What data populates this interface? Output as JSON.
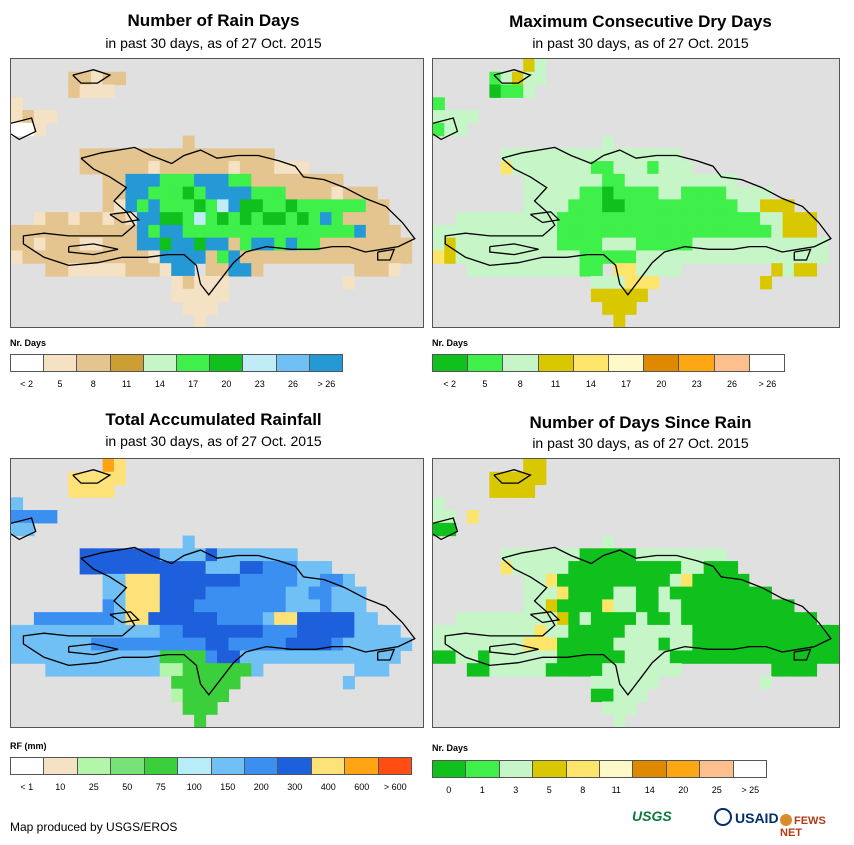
{
  "footer": "Map produced by USGS/EROS",
  "logos": [
    "USGS",
    "USAID",
    "FEWS NET"
  ],
  "colors": {
    "land_bg": "#e0e0e0",
    "coast": "#000000"
  },
  "panels": [
    {
      "title": "Number of Rain Days",
      "subtitle": "in past 30 days, as of 27 Oct. 2015",
      "legend_title": "Nr. Days",
      "legend_colors": [
        "#ffffff",
        "#f5e1c4",
        "#e4c48f",
        "#cc9f35",
        "#c6f5c8",
        "#3fef4a",
        "#10c01d",
        "#bfecf7",
        "#6ec0f5",
        "#2499d6"
      ],
      "legend_labels": [
        "< 2",
        "5",
        "8",
        "11",
        "14",
        "17",
        "20",
        "23",
        "26",
        "> 26"
      ],
      "grid": [
        "........tt..........................",
        ".....ccbcc..........................",
        ".....cbbb...........................",
        "b...................................",
        "bcbb................................",
        "aab.................................",
        "...............c....................",
        "......ccccccccccccccccc.............",
        "......ccccccbccccccbcccbbb..........",
        "........ccjjjfffjjjffcccccccc.......",
        "........ccjjfffgfjjjjfffccccbccc....",
        "........cbjfjfffgfhjggffgffffffcc...",
        "..bccbccbcbjjggfhfgfgfggfgfjfcccc...",
        "cccccccccccjfjjfffffffffffffffjccc..",
        "ccbcccbbcccjjgjjgjjcfjjfjffcccccccc.",
        "bcccccccccccbjjjjcfjccccccccccccccc.",
        "...ccbbbbbcccbjj.ccjjc........cccb..",
        "..............bcbbb..........b......",
        "..............bbbbb.................",
        "...............bbb..................",
        "................b..................."
      ]
    },
    {
      "title": "Maximum Consecutive Dry Days",
      "subtitle": "in past 30 days, as of 27 Oct. 2015",
      "legend_title": "Nr. Days",
      "legend_colors": [
        "#10c01d",
        "#3fef4a",
        "#c6f5c8",
        "#d9c800",
        "#fce56a",
        "#fff8c8",
        "#de8900",
        "#ffa614",
        "#fdbf8e",
        "#ffffff"
      ],
      "legend_labels": [
        "< 2",
        "5",
        "8",
        "11",
        "14",
        "17",
        "20",
        "23",
        "26",
        "> 26"
      ],
      "grid": [
        "........dc..........................",
        ".....bcdcc..........................",
        ".....abbc...........................",
        "b...................................",
        "cccc................................",
        "bcc.................................",
        "...............c....................",
        "......cccccccccccccccc..............",
        "......ecccccccbbcccbccc.............",
        "........cccccccbbcccccccccc.........",
        "........cccccbbabbbbccbbbbcccc......",
        "........ccccbbbaabbbbbbbbbbccddd....",
        "..cccccccccbbbbbbbbbbbbbbbbbbccddd..",
        "cccccccccccbbbbbbbbbbbbbbbbbbbcddd..",
        "cdcccccccccbbbbcccbbbbbcccccccccccc.",
        "edcccccccccccbbbbbccccccccccccccccc.",
        "...ccccccccccbb.eecccc........dcdd..",
        "..............ccceee.........d......",
        "..............ddddd.................",
        "...............ddd..................",
        "................d..................."
      ]
    },
    {
      "title": "Total Accumulated Rainfall",
      "subtitle": "in past 30 days, as of 27 Oct. 2015",
      "legend_title": "RF (mm)",
      "legend_colors": [
        "#ffffff",
        "#f5e1c4",
        "#b4f6a9",
        "#78e178",
        "#3ccf3c",
        "#b8ecf7",
        "#70bff5",
        "#3a8ff0",
        "#1e5fdc",
        "#fde27a",
        "#ffa514",
        "#ff4d14"
      ],
      "legend_labels": [
        "< 1",
        "10",
        "25",
        "50",
        "75",
        "100",
        "150",
        "200",
        "300",
        "400",
        "600",
        "> 600"
      ],
      "grid": [
        "........kj..........................",
        ".....jjjjj..........................",
        ".....jjjj...........................",
        "g...................................",
        "hhhh................................",
        "gg..................................",
        "...............g....................",
        "......iiiiiiiggggiggggggg...........",
        "......iiiiiiiiiiigggiihhhggg........",
        "........ggjjjiiiiiiihhhhhgghhg......",
        "........ggjjjiiiihhhhhhhgghhggg.....",
        "........hgjjjiiihhhhhhhhggghggg.....",
        "..hhhhhhhgjjiiiiiihhhhgjjiiiiigg....",
        "ggggggggggggghhiiiiiiihhhiiiiigggg..",
        "ggggggghhhhhhhhhhiihhhhhiiiihgggggg.",
        "gggggggggggggeeeehiigggggggggggggg..",
        "...ggggggggggcceeeeeeg........ggg...",
        "..............eeeeee.........g......",
        "..............ceeee.................",
        "...............eee..................",
        "................e..................."
      ]
    },
    {
      "title": "Number of Days Since Rain",
      "subtitle": "in past 30 days, as of 27 Oct. 2015",
      "legend_title": "Nr. Days",
      "legend_colors": [
        "#10c01d",
        "#3fef4a",
        "#c6f5c8",
        "#d9c800",
        "#fce56a",
        "#fff8c8",
        "#de8900",
        "#ffa614",
        "#fdbf8e",
        "#ffffff"
      ],
      "legend_labels": [
        "0",
        "1",
        "3",
        "5",
        "8",
        "11",
        "14",
        "20",
        "25",
        "> 25"
      ],
      "grid": [
        "........dd..........................",
        ".....ddddd..........................",
        ".....dddd...........................",
        "c...................................",
        "cc.e................................",
        "aa..................................",
        "...............c....................",
        "......cccccccaaaaacccccccc..........",
        "......ecccccaaaaaaaaaaccaaa.........",
        "........cceaaaaaaaaaaceaaaaa........",
        "........ccceaaaaccaacaaaaaaaaa......",
        "........ccdaaaaeccaaccaaaaaaaaaa....",
        "..cccccccccdacaaaacaacaaaaaaaaaaaa..",
        "ccccccccceccaaaaaccccccaaaaaaaaaaaaa",
        "cccccccceeeaaaaaccccaccaaaaaaaaaaaaa",
        "aaccaccccccaaaaaaccccaaaaaaaaaaaaaaa",
        "...aacccccaaaaaccccccc........aaaa..",
        "..............cccccc.........c......",
        "..............aaccc.................",
        "...............ccc..................",
        "................c..................."
      ]
    }
  ]
}
